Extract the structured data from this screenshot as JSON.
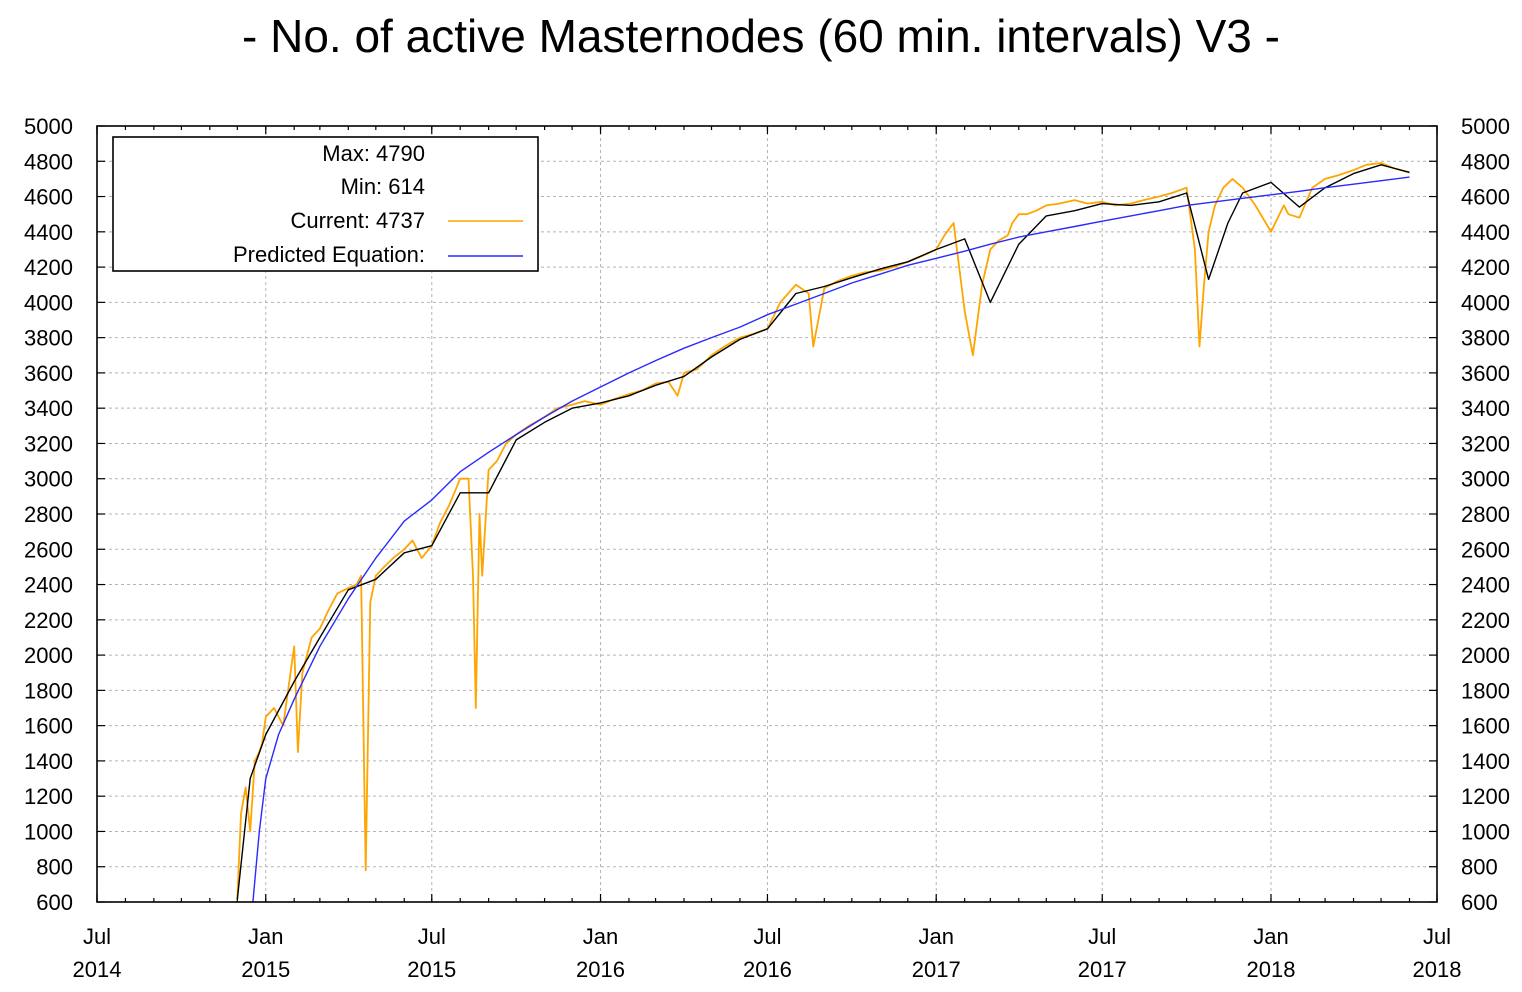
{
  "chart_data": {
    "type": "line",
    "title": "- No. of active Masternodes (60 min. intervals) V3 -",
    "xlabel": "",
    "ylabel": "",
    "xlim": [
      "2014-07-01",
      "2018-07-01"
    ],
    "ylim": [
      600,
      5000
    ],
    "yticks": [
      600,
      800,
      1000,
      1200,
      1400,
      1600,
      1800,
      2000,
      2200,
      2400,
      2600,
      2800,
      3000,
      3200,
      3400,
      3600,
      3800,
      4000,
      4200,
      4400,
      4600,
      4800,
      5000
    ],
    "xticks": [
      {
        "date": "2014-07-01",
        "month": "Jul",
        "year": "2014"
      },
      {
        "date": "2015-01-01",
        "month": "Jan",
        "year": "2015"
      },
      {
        "date": "2015-07-01",
        "month": "Jul",
        "year": "2015"
      },
      {
        "date": "2016-01-01",
        "month": "Jan",
        "year": "2016"
      },
      {
        "date": "2016-07-01",
        "month": "Jul",
        "year": "2016"
      },
      {
        "date": "2017-01-01",
        "month": "Jan",
        "year": "2017"
      },
      {
        "date": "2017-07-01",
        "month": "Jul",
        "year": "2017"
      },
      {
        "date": "2018-01-01",
        "month": "Jan",
        "year": "2018"
      },
      {
        "date": "2018-07-01",
        "month": "Jul",
        "year": "2018"
      }
    ],
    "grid": true,
    "legend_position": "top-left",
    "legend": {
      "max_label": "Max: 4790",
      "min_label": "Min: 614",
      "current_label": "Current: 4737",
      "predicted_label": "Predicted Equation:"
    },
    "colors": {
      "current": "#ffa500",
      "average": "#000000",
      "predicted": "#2a2aff"
    },
    "series": [
      {
        "name": "Current",
        "color": "#ffa500",
        "x": [
          "2014-12-01",
          "2014-12-05",
          "2014-12-10",
          "2014-12-15",
          "2014-12-20",
          "2014-12-25",
          "2014-12-28",
          "2015-01-01",
          "2015-01-10",
          "2015-01-20",
          "2015-02-01",
          "2015-02-05",
          "2015-02-10",
          "2015-02-15",
          "2015-02-20",
          "2015-03-01",
          "2015-03-10",
          "2015-03-20",
          "2015-04-01",
          "2015-04-10",
          "2015-04-15",
          "2015-04-20",
          "2015-04-25",
          "2015-05-01",
          "2015-05-10",
          "2015-05-20",
          "2015-06-01",
          "2015-06-10",
          "2015-06-20",
          "2015-07-01",
          "2015-07-10",
          "2015-07-20",
          "2015-08-01",
          "2015-08-10",
          "2015-08-15",
          "2015-08-18",
          "2015-08-22",
          "2015-08-25",
          "2015-09-01",
          "2015-09-10",
          "2015-09-20",
          "2015-10-01",
          "2015-10-15",
          "2015-11-01",
          "2015-11-15",
          "2015-12-01",
          "2015-12-15",
          "2016-01-01",
          "2016-01-15",
          "2016-02-01",
          "2016-02-15",
          "2016-03-01",
          "2016-03-15",
          "2016-03-25",
          "2016-04-01",
          "2016-04-15",
          "2016-05-01",
          "2016-05-15",
          "2016-06-01",
          "2016-06-15",
          "2016-07-01",
          "2016-07-15",
          "2016-08-01",
          "2016-08-15",
          "2016-08-20",
          "2016-09-01",
          "2016-09-15",
          "2016-10-01",
          "2016-10-15",
          "2016-11-01",
          "2016-11-15",
          "2016-12-01",
          "2016-12-15",
          "2017-01-01",
          "2017-01-10",
          "2017-01-20",
          "2017-02-01",
          "2017-02-10",
          "2017-02-20",
          "2017-03-01",
          "2017-03-10",
          "2017-03-20",
          "2017-03-25",
          "2017-04-01",
          "2017-04-10",
          "2017-04-20",
          "2017-05-01",
          "2017-05-15",
          "2017-06-01",
          "2017-06-15",
          "2017-07-01",
          "2017-07-15",
          "2017-08-01",
          "2017-08-15",
          "2017-09-01",
          "2017-09-15",
          "2017-10-01",
          "2017-10-10",
          "2017-10-15",
          "2017-10-20",
          "2017-10-25",
          "2017-11-01",
          "2017-11-10",
          "2017-11-20",
          "2017-12-01",
          "2017-12-15",
          "2018-01-01",
          "2018-01-15",
          "2018-01-20",
          "2018-02-01",
          "2018-02-15",
          "2018-03-01",
          "2018-03-15",
          "2018-04-01",
          "2018-04-15",
          "2018-05-01",
          "2018-05-15",
          "2018-06-01"
        ],
        "values": [
          614,
          1100,
          1250,
          1000,
          1400,
          1450,
          1500,
          1650,
          1700,
          1600,
          2050,
          1450,
          1900,
          2000,
          2100,
          2150,
          2250,
          2350,
          2380,
          2400,
          2450,
          780,
          2300,
          2450,
          2500,
          2550,
          2600,
          2650,
          2550,
          2620,
          2750,
          2850,
          3000,
          3000,
          2450,
          1700,
          2800,
          2450,
          3050,
          3100,
          3200,
          3250,
          3300,
          3350,
          3400,
          3420,
          3440,
          3420,
          3450,
          3480,
          3500,
          3540,
          3550,
          3470,
          3600,
          3620,
          3700,
          3750,
          3800,
          3820,
          3850,
          4000,
          4100,
          4050,
          3750,
          4080,
          4120,
          4150,
          4170,
          4180,
          4200,
          4230,
          4260,
          4300,
          4380,
          4450,
          3950,
          3700,
          4100,
          4300,
          4350,
          4380,
          4450,
          4500,
          4500,
          4520,
          4550,
          4560,
          4580,
          4560,
          4570,
          4550,
          4560,
          4580,
          4600,
          4620,
          4650,
          4300,
          3750,
          4100,
          4400,
          4550,
          4650,
          4700,
          4650,
          4550,
          4400,
          4550,
          4500,
          4480,
          4650,
          4700,
          4720,
          4750,
          4780,
          4790,
          4760,
          4737
        ]
      },
      {
        "name": "",
        "color": "#000000",
        "x": [
          "2014-12-01",
          "2014-12-15",
          "2015-01-01",
          "2015-02-01",
          "2015-03-01",
          "2015-04-01",
          "2015-05-01",
          "2015-06-01",
          "2015-07-01",
          "2015-08-01",
          "2015-09-01",
          "2015-10-01",
          "2015-11-01",
          "2015-12-01",
          "2016-01-01",
          "2016-02-01",
          "2016-03-01",
          "2016-04-01",
          "2016-05-01",
          "2016-06-01",
          "2016-07-01",
          "2016-08-01",
          "2016-09-01",
          "2016-10-01",
          "2016-11-01",
          "2016-12-01",
          "2017-01-01",
          "2017-02-01",
          "2017-03-01",
          "2017-04-01",
          "2017-05-01",
          "2017-06-01",
          "2017-07-01",
          "2017-08-01",
          "2017-09-01",
          "2017-10-01",
          "2017-10-25",
          "2017-11-15",
          "2017-12-01",
          "2018-01-01",
          "2018-02-01",
          "2018-03-01",
          "2018-04-01",
          "2018-05-01",
          "2018-06-01"
        ],
        "values": [
          614,
          1300,
          1550,
          1850,
          2100,
          2370,
          2430,
          2580,
          2620,
          2920,
          2920,
          3220,
          3320,
          3400,
          3430,
          3470,
          3530,
          3580,
          3690,
          3790,
          3850,
          4050,
          4090,
          4140,
          4190,
          4230,
          4300,
          4360,
          4000,
          4330,
          4490,
          4520,
          4560,
          4550,
          4570,
          4620,
          4130,
          4450,
          4620,
          4680,
          4540,
          4650,
          4730,
          4780,
          4737
        ]
      },
      {
        "name": "Predicted Equation:",
        "color": "#2a2aff",
        "x": [
          "2014-12-18",
          "2014-12-25",
          "2015-01-01",
          "2015-01-15",
          "2015-02-01",
          "2015-03-01",
          "2015-04-01",
          "2015-05-01",
          "2015-06-01",
          "2015-07-01",
          "2015-08-01",
          "2015-09-01",
          "2015-10-01",
          "2015-11-01",
          "2015-12-01",
          "2016-01-01",
          "2016-02-01",
          "2016-03-01",
          "2016-04-01",
          "2016-05-01",
          "2016-06-01",
          "2016-07-01",
          "2016-08-01",
          "2016-09-01",
          "2016-10-01",
          "2016-11-01",
          "2016-12-01",
          "2017-01-01",
          "2017-02-01",
          "2017-03-01",
          "2017-04-01",
          "2017-05-01",
          "2017-06-01",
          "2017-07-01",
          "2017-08-01",
          "2017-09-01",
          "2017-10-01",
          "2017-11-01",
          "2017-12-01",
          "2018-01-01",
          "2018-02-01",
          "2018-03-01",
          "2018-04-01",
          "2018-05-01",
          "2018-06-01"
        ],
        "values": [
          600,
          1000,
          1300,
          1550,
          1750,
          2050,
          2320,
          2550,
          2760,
          2880,
          3040,
          3150,
          3250,
          3350,
          3440,
          3520,
          3600,
          3670,
          3740,
          3800,
          3860,
          3930,
          3990,
          4050,
          4110,
          4160,
          4210,
          4250,
          4290,
          4330,
          4370,
          4400,
          4430,
          4460,
          4490,
          4520,
          4550,
          4570,
          4590,
          4610,
          4630,
          4650,
          4670,
          4690,
          4710
        ]
      }
    ]
  }
}
